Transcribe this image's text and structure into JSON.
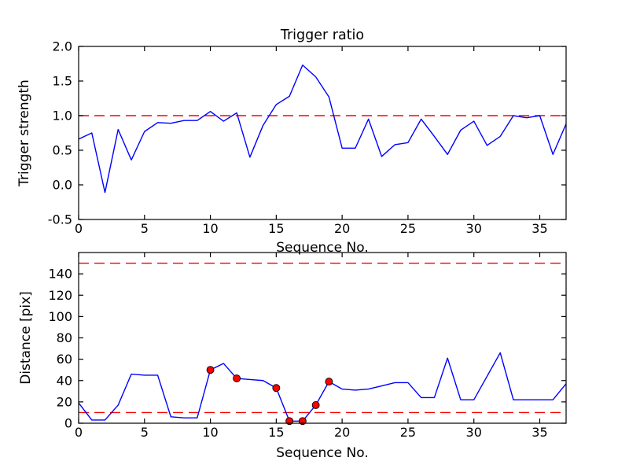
{
  "figure": {
    "background": "#ffffff",
    "line_color": "#0000ff",
    "threshold_color": "#ff0000",
    "marker_face": "#ff0000",
    "marker_edge": "#000000",
    "text_color": "#000000"
  },
  "chart_data": [
    {
      "type": "line",
      "title": "Trigger ratio",
      "xlabel": "Sequence No.",
      "ylabel": "Trigger strength",
      "xlim": [
        0,
        37
      ],
      "ylim": [
        -0.5,
        2.0
      ],
      "grid": false,
      "xticks": [
        0,
        5,
        10,
        15,
        20,
        25,
        30,
        35
      ],
      "xtick_labels": [
        "0",
        "5",
        "10",
        "15",
        "20",
        "25",
        "30",
        "35"
      ],
      "yticks": [
        -0.5,
        0.0,
        0.5,
        1.0,
        1.5,
        2.0
      ],
      "ytick_labels": [
        "-0.5",
        "0.0",
        "0.5",
        "1.0",
        "1.5",
        "2.0"
      ],
      "threshold_lines": [
        {
          "name": "trigger-threshold-line",
          "y": 1.0,
          "color": "#ff0000",
          "style": "dashed"
        }
      ],
      "series": [
        {
          "name": "trigger-strength-line",
          "color": "#0000ff",
          "x": [
            0,
            1,
            2,
            3,
            4,
            5,
            6,
            7,
            8,
            9,
            10,
            11,
            12,
            13,
            14,
            15,
            16,
            17,
            18,
            19,
            20,
            21,
            22,
            23,
            24,
            25,
            26,
            27,
            28,
            29,
            30,
            31,
            32,
            33,
            34,
            35,
            36,
            37
          ],
          "values": [
            0.66,
            0.75,
            -0.11,
            0.8,
            0.36,
            0.77,
            0.9,
            0.89,
            0.93,
            0.93,
            1.06,
            0.92,
            1.04,
            0.4,
            0.86,
            1.16,
            1.28,
            1.73,
            1.56,
            1.27,
            0.53,
            0.53,
            0.95,
            0.41,
            0.58,
            0.61,
            0.95,
            0.7,
            0.44,
            0.79,
            0.92,
            0.57,
            0.7,
            1.0,
            0.97,
            1.0,
            0.44,
            0.88
          ]
        }
      ]
    },
    {
      "type": "line",
      "title": "",
      "xlabel": "Sequence No.",
      "ylabel": "Distance [pix]",
      "xlim": [
        0,
        37
      ],
      "ylim": [
        0,
        160
      ],
      "grid": false,
      "xticks": [
        0,
        5,
        10,
        15,
        20,
        25,
        30,
        35
      ],
      "xtick_labels": [
        "0",
        "5",
        "10",
        "15",
        "20",
        "25",
        "30",
        "35"
      ],
      "yticks": [
        0,
        20,
        40,
        60,
        80,
        100,
        120,
        140
      ],
      "ytick_labels": [
        "0",
        "20",
        "40",
        "60",
        "80",
        "100",
        "120",
        "140"
      ],
      "threshold_lines": [
        {
          "name": "upper-distance-threshold-line",
          "y": 150,
          "color": "#ff0000",
          "style": "dashed"
        },
        {
          "name": "lower-distance-threshold-line",
          "y": 10,
          "color": "#ff0000",
          "style": "dashed"
        }
      ],
      "series": [
        {
          "name": "distance-line",
          "color": "#0000ff",
          "x": [
            0,
            1,
            2,
            3,
            4,
            5,
            6,
            7,
            8,
            9,
            10,
            11,
            12,
            13,
            14,
            15,
            16,
            17,
            18,
            19,
            20,
            21,
            22,
            23,
            24,
            25,
            26,
            27,
            28,
            29,
            30,
            31,
            32,
            33,
            34,
            35,
            36,
            37
          ],
          "values": [
            19,
            3,
            3,
            17,
            46,
            45,
            45,
            6,
            5,
            5,
            50,
            56,
            42,
            41,
            40,
            33,
            2,
            2,
            17,
            39,
            32,
            31,
            32,
            35,
            38,
            38,
            24,
            24,
            61,
            22,
            22,
            44,
            66,
            22,
            22,
            22,
            22,
            37
          ]
        }
      ],
      "markers": {
        "name": "trigger-event-markers",
        "face_color": "#ff0000",
        "edge_color": "#000000",
        "x": [
          10,
          12,
          15,
          16,
          17,
          18,
          19
        ],
        "y": [
          50,
          42,
          33,
          2,
          2,
          17,
          39
        ]
      }
    }
  ]
}
